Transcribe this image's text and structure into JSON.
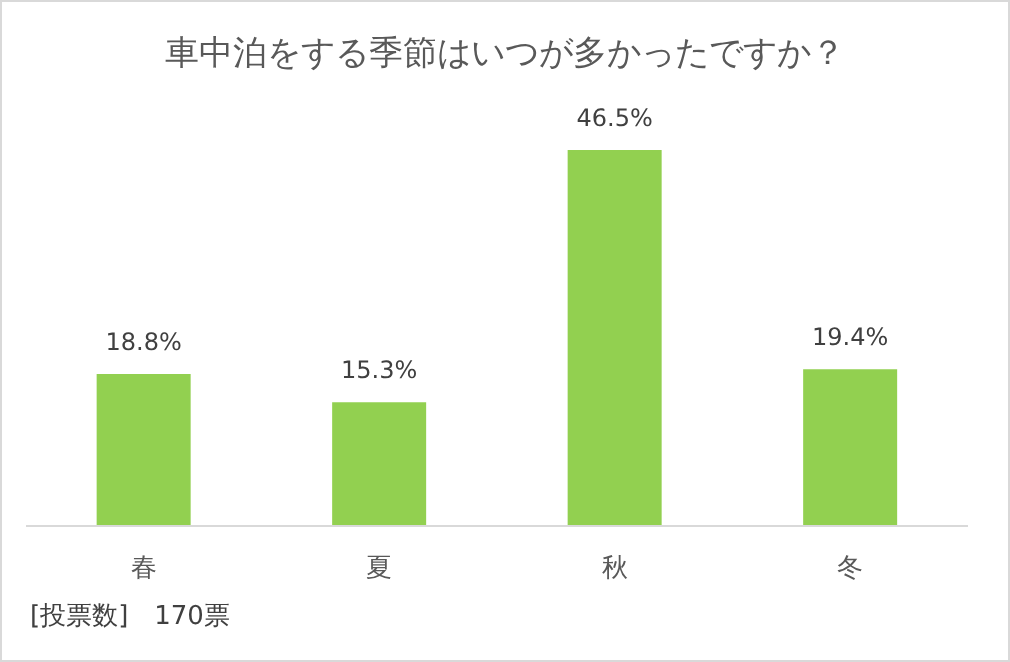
{
  "chart_data": {
    "type": "bar",
    "title": "車中泊をする季節はいつが多かったですか？",
    "categories": [
      "春",
      "夏",
      "秋",
      "冬"
    ],
    "values": [
      18.8,
      15.3,
      46.5,
      19.4
    ],
    "value_labels": [
      "18.8%",
      "15.3%",
      "46.5%",
      "19.4%"
    ],
    "color": "#92d050",
    "grid": false,
    "legend": false,
    "annotations": [
      "[投票数]　170票"
    ]
  }
}
